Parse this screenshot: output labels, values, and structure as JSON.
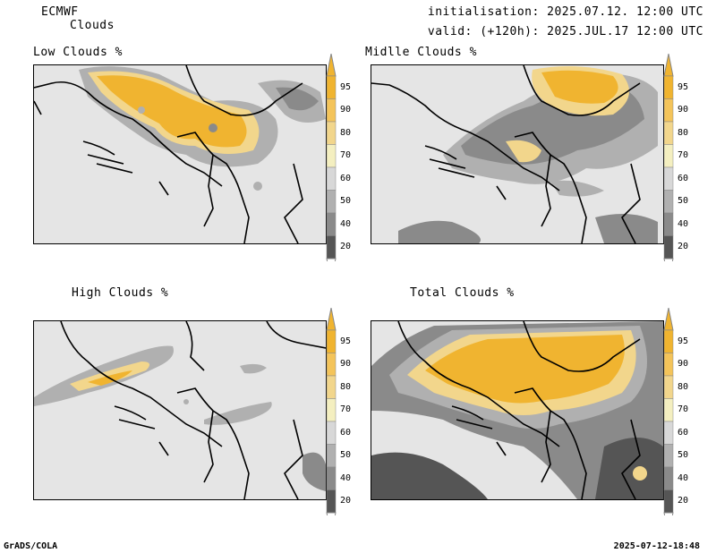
{
  "header": {
    "model": "ECMWF",
    "product": "Clouds",
    "init": "initialisation: 2025.07.12. 12:00 UTC",
    "valid": "valid: (+120h): 2025.JUL.17 12:00 UTC"
  },
  "panels": [
    {
      "title": "Low Clouds %"
    },
    {
      "title": "Midlle Clouds %"
    },
    {
      "title": "High Clouds %"
    },
    {
      "title": "Total Clouds %"
    }
  ],
  "colorbar": {
    "levels": [
      "95",
      "90",
      "80",
      "70",
      "60",
      "50",
      "40",
      "20"
    ],
    "colors": [
      "#f0b430",
      "#f4c45a",
      "#f2d68c",
      "#f4efc0",
      "#d8d8d8",
      "#b0b0b0",
      "#8a8a8a",
      "#555555"
    ]
  },
  "footer": {
    "left": "GrADS/COLA",
    "right": "2025-07-12-18:48"
  }
}
